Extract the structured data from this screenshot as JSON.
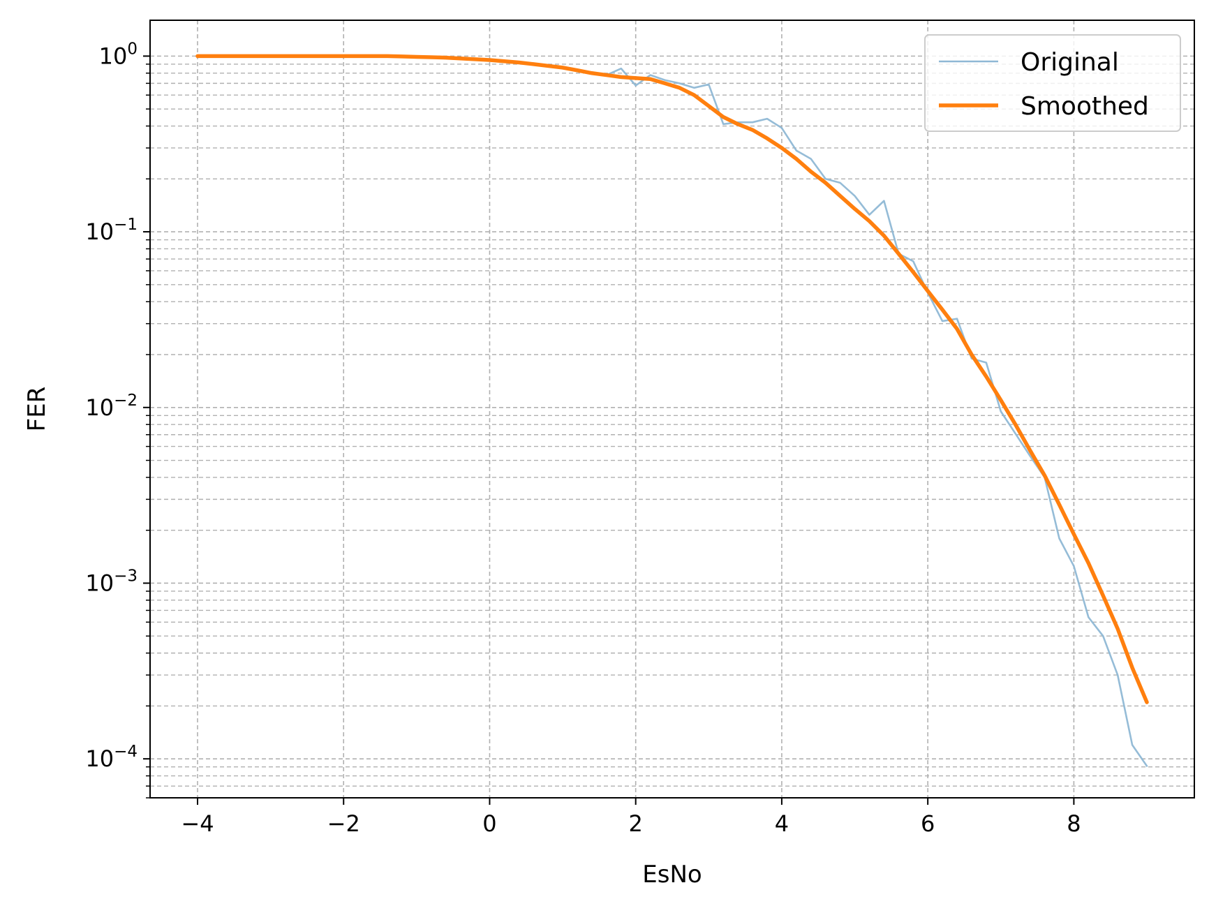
{
  "chart_data": {
    "type": "line",
    "xlabel": "EsNo",
    "ylabel": "FER",
    "xscale": "linear",
    "yscale": "log",
    "xlim": [
      -4.65,
      9.65
    ],
    "ylim": [
      6e-05,
      1.6
    ],
    "xticks": [
      -4,
      -2,
      0,
      2,
      4,
      6,
      8
    ],
    "xtick_labels": [
      "−4",
      "−2",
      "0",
      "2",
      "4",
      "6",
      "8"
    ],
    "yticks": [
      1,
      0.1,
      0.01,
      0.001,
      0.0001
    ],
    "ytick_labels": [
      {
        "base": "10",
        "exp": "0"
      },
      {
        "base": "10",
        "exp": "−1"
      },
      {
        "base": "10",
        "exp": "−2"
      },
      {
        "base": "10",
        "exp": "−3"
      },
      {
        "base": "10",
        "exp": "−4"
      }
    ],
    "grid": {
      "major": true,
      "minor_y": true,
      "style": "dashed",
      "color": "#b0b0b0"
    },
    "legend": {
      "position": "top-right"
    },
    "series": [
      {
        "name": "Original",
        "color": "#8fb8d5",
        "x": [
          -4,
          -3.8,
          -3.6,
          -3.4,
          -3.2,
          -3,
          -2.8,
          -2.6,
          -2.4,
          -2.2,
          -2,
          -1.8,
          -1.6,
          -1.4,
          -1.2,
          -1,
          -0.8,
          -0.6,
          -0.4,
          -0.2,
          0,
          0.2,
          0.4,
          0.6,
          0.8,
          1,
          1.2,
          1.4,
          1.6,
          1.8,
          2,
          2.2,
          2.4,
          2.6,
          2.8,
          3,
          3.2,
          3.4,
          3.6,
          3.8,
          4,
          4.2,
          4.4,
          4.6,
          4.8,
          5,
          5.2,
          5.4,
          5.6,
          5.8,
          6,
          6.2,
          6.4,
          6.6,
          6.8,
          7,
          7.2,
          7.4,
          7.6,
          7.8,
          8,
          8.2,
          8.4,
          8.6,
          8.8,
          9
        ],
        "y": [
          1,
          1,
          1,
          1,
          1,
          1,
          1,
          1,
          1,
          1,
          1,
          1,
          1,
          1,
          1,
          1,
          0.99,
          0.98,
          0.97,
          0.96,
          0.95,
          0.93,
          0.92,
          0.9,
          0.88,
          0.86,
          0.84,
          0.8,
          0.78,
          0.85,
          0.68,
          0.78,
          0.73,
          0.7,
          0.66,
          0.69,
          0.41,
          0.42,
          0.42,
          0.44,
          0.39,
          0.29,
          0.26,
          0.2,
          0.19,
          0.16,
          0.125,
          0.15,
          0.075,
          0.068,
          0.045,
          0.031,
          0.032,
          0.019,
          0.018,
          0.0095,
          0.0071,
          0.0053,
          0.004,
          0.0018,
          0.00125,
          0.00064,
          0.0005,
          0.0003,
          0.00012,
          9.1e-05
        ]
      },
      {
        "name": "Smoothed",
        "color": "#ff7f0e",
        "x": [
          -4,
          -3.8,
          -3.6,
          -3.4,
          -3.2,
          -3,
          -2.8,
          -2.6,
          -2.4,
          -2.2,
          -2,
          -1.8,
          -1.6,
          -1.4,
          -1.2,
          -1,
          -0.8,
          -0.6,
          -0.4,
          -0.2,
          0,
          0.2,
          0.4,
          0.6,
          0.8,
          1,
          1.2,
          1.4,
          1.6,
          1.8,
          2,
          2.2,
          2.4,
          2.6,
          2.8,
          3,
          3.2,
          3.4,
          3.6,
          3.8,
          4,
          4.2,
          4.4,
          4.6,
          4.8,
          5,
          5.2,
          5.4,
          5.6,
          5.8,
          6,
          6.2,
          6.4,
          6.6,
          6.8,
          7,
          7.2,
          7.4,
          7.6,
          7.8,
          8,
          8.2,
          8.4,
          8.6,
          8.8,
          9
        ],
        "y": [
          1,
          1,
          1,
          1,
          1,
          1,
          1,
          1,
          1,
          1,
          1,
          1,
          1,
          1,
          0.995,
          0.99,
          0.985,
          0.98,
          0.97,
          0.96,
          0.95,
          0.935,
          0.92,
          0.9,
          0.88,
          0.86,
          0.83,
          0.8,
          0.78,
          0.76,
          0.75,
          0.74,
          0.7,
          0.66,
          0.6,
          0.52,
          0.45,
          0.41,
          0.38,
          0.34,
          0.3,
          0.26,
          0.22,
          0.19,
          0.16,
          0.135,
          0.115,
          0.095,
          0.075,
          0.059,
          0.046,
          0.036,
          0.028,
          0.02,
          0.015,
          0.011,
          0.008,
          0.0057,
          0.0041,
          0.0028,
          0.0019,
          0.0013,
          0.00085,
          0.00055,
          0.00033,
          0.00021
        ]
      }
    ]
  }
}
